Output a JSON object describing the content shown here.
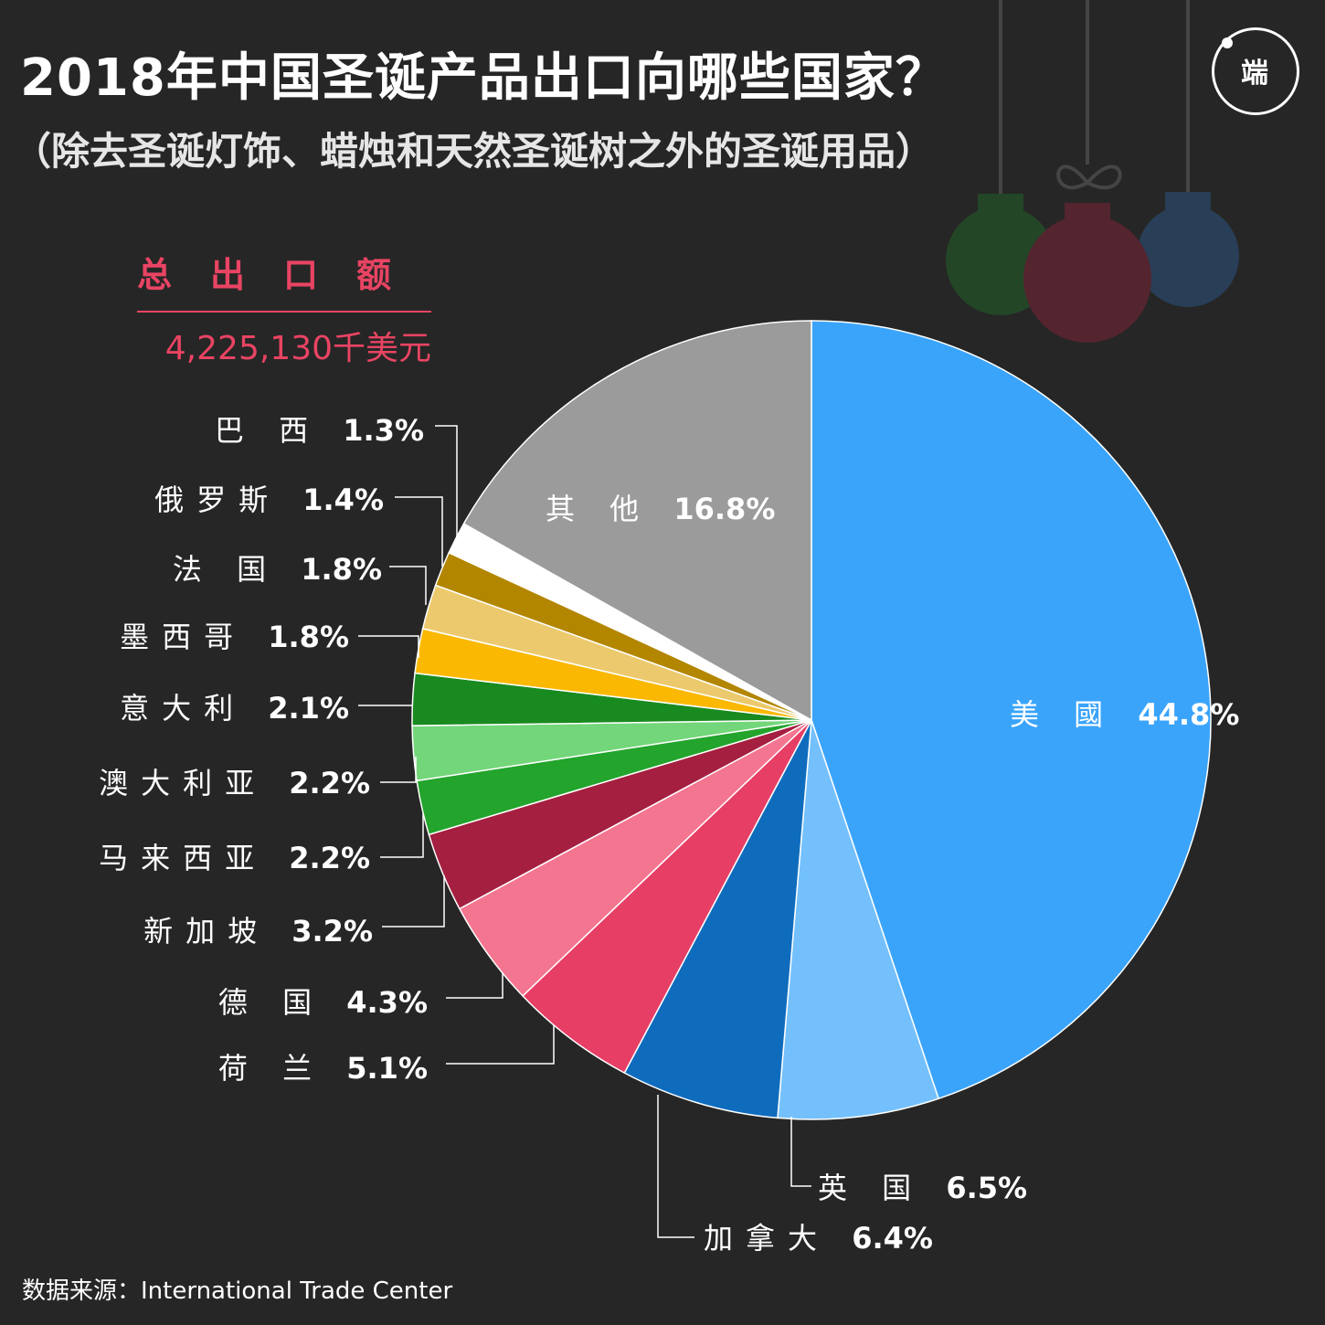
{
  "title": "2018年中国圣诞产品出口向哪些国家？",
  "subtitle": "（除去圣诞灯饰、蜡烛和天然圣诞树之外的圣诞用品）",
  "total": {
    "label": "总出口额",
    "value": "4,225,130千美元"
  },
  "source": "数据来源：International Trade Center",
  "logo": {
    "text": "端",
    "icon": "duan-logo-icon"
  },
  "chart_data": {
    "type": "pie",
    "unit": "%",
    "slices": [
      {
        "label": "美 國",
        "value": 44.8,
        "display": "44.8%",
        "color": "#3aa4fb"
      },
      {
        "label": "英 国",
        "value": 6.5,
        "display": "6.5%",
        "color": "#74c0fc"
      },
      {
        "label": "加拿大",
        "value": 6.4,
        "display": "6.4%",
        "color": "#0f6cbd"
      },
      {
        "label": "荷 兰",
        "value": 5.1,
        "display": "5.1%",
        "color": "#e63e65"
      },
      {
        "label": "德 国",
        "value": 4.3,
        "display": "4.3%",
        "color": "#f4758f"
      },
      {
        "label": "新加坡",
        "value": 3.2,
        "display": "3.2%",
        "color": "#a51f40"
      },
      {
        "label": "马来西亚",
        "value": 2.2,
        "display": "2.2%",
        "color": "#23a42c"
      },
      {
        "label": "澳大利亚",
        "value": 2.2,
        "display": "2.2%",
        "color": "#73d67a"
      },
      {
        "label": "意大利",
        "value": 2.1,
        "display": "2.1%",
        "color": "#198a1f"
      },
      {
        "label": "墨西哥",
        "value": 1.8,
        "display": "1.8%",
        "color": "#fab800"
      },
      {
        "label": "法 国",
        "value": 1.8,
        "display": "1.8%",
        "color": "#ecc96c"
      },
      {
        "label": "俄罗斯",
        "value": 1.4,
        "display": "1.4%",
        "color": "#b38600"
      },
      {
        "label": "巴 西",
        "value": 1.3,
        "display": "1.3%",
        "color": "#ffffff"
      },
      {
        "label": "其 他",
        "value": 16.8,
        "display": "16.8%",
        "color": "#9b9b9b"
      }
    ]
  }
}
